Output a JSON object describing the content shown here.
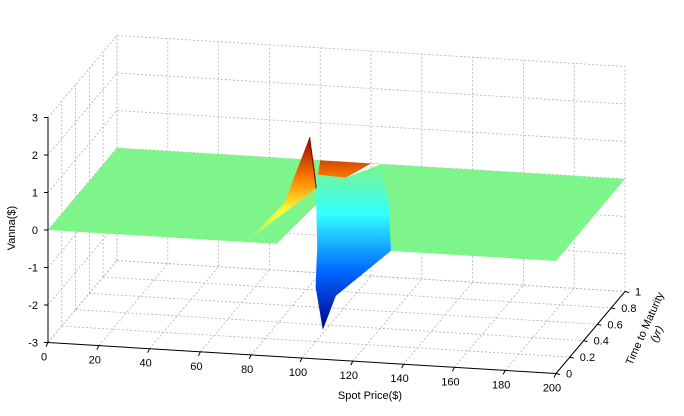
{
  "chart_data": {
    "type": "surface",
    "title": "",
    "xlabel": "Spot Price($)",
    "ylabel_line1": "Time to Maturity",
    "ylabel_line2": "(yr)",
    "zlabel": "Vanna($)",
    "xlim": [
      0,
      200
    ],
    "ylim": [
      0,
      1
    ],
    "zlim": [
      -3,
      3
    ],
    "x_ticks": [
      "0",
      "20",
      "40",
      "60",
      "80",
      "100",
      "120",
      "140",
      "160",
      "180",
      "200"
    ],
    "y_ticks": [
      "0",
      "0.2",
      "0.4",
      "0.6",
      "0.8",
      "1"
    ],
    "z_ticks": [
      "-3",
      "-2",
      "-1",
      "0",
      "1",
      "2",
      "3"
    ],
    "grid": true,
    "colormap": "jet",
    "colors": {
      "surface_flat": "#7df58a",
      "grid": "#b0b0b0",
      "axis": "#000000"
    },
    "surface": {
      "description_points": [
        {
          "spot": 100,
          "maturity": 0.0,
          "vanna": 2.9
        },
        {
          "spot": 106,
          "maturity": 0.1,
          "vanna": -2.4
        },
        {
          "spot": 100,
          "maturity": 1.0,
          "vanna": 0.0
        }
      ]
    }
  }
}
